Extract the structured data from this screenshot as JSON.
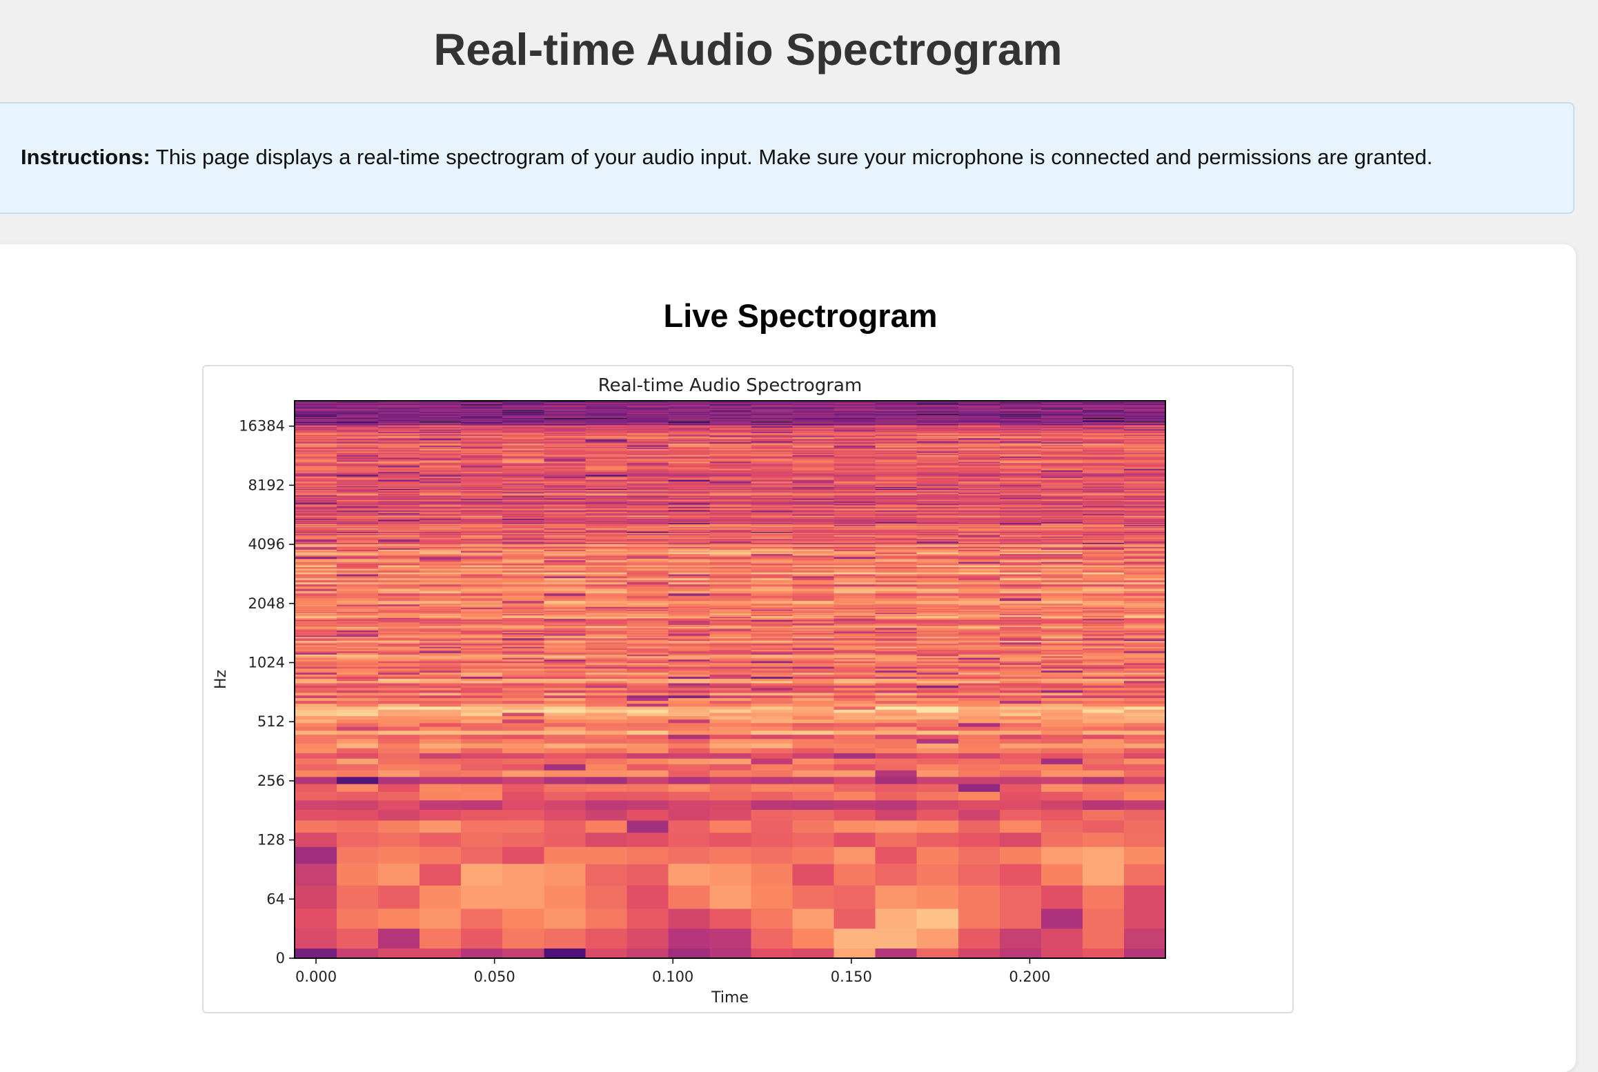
{
  "page": {
    "title": "Real-time Audio Spectrogram"
  },
  "instructions": {
    "label": "Instructions:",
    "text": " This page displays a real-time spectrogram of your audio input. Make sure your microphone is connected and permissions are granted."
  },
  "card": {
    "title": "Live Spectrogram"
  },
  "chart_data": {
    "type": "heatmap",
    "title": "Real-time Audio Spectrogram",
    "xlabel": "Time",
    "ylabel": "Hz",
    "xlim": [
      -0.006,
      0.238
    ],
    "x_ticks": [
      0.0,
      0.05,
      0.1,
      0.15,
      0.2
    ],
    "x_tick_labels": [
      "0.000",
      "0.050",
      "0.100",
      "0.150",
      "0.200"
    ],
    "y_scale": "symlog-base2",
    "y_ticks": [
      0,
      64,
      128,
      256,
      512,
      1024,
      2048,
      4096,
      8192,
      16384
    ],
    "y_tick_labels": [
      "0",
      "64",
      "128",
      "256",
      "512",
      "1024",
      "2048",
      "4096",
      "8192",
      "16384"
    ],
    "ylim": [
      0,
      22050
    ],
    "colormap": "magma",
    "frame_times": [
      0.0,
      0.0116,
      0.0232,
      0.0348,
      0.0464,
      0.058,
      0.0697,
      0.0813,
      0.0929,
      0.1045,
      0.1161,
      0.1277,
      0.1393,
      0.1509,
      0.1625,
      0.1741,
      0.1858,
      0.1974,
      0.209,
      0.2206,
      0.2322
    ],
    "freq_bins_hz": [
      0,
      21.5,
      43,
      64.5,
      86,
      107.7,
      129,
      150.7,
      172,
      193.8,
      215,
      237,
      258,
      280,
      301,
      323,
      344,
      366,
      388,
      409,
      430
    ],
    "intensity_low_bins": [
      [
        0.35,
        0.55,
        0.6,
        0.6,
        0.5,
        0.55,
        0.25,
        0.6,
        0.55,
        0.45,
        0.5,
        0.62,
        0.6,
        0.82,
        0.5,
        0.68,
        0.58,
        0.52,
        0.6,
        0.64,
        0.5
      ],
      [
        0.6,
        0.66,
        0.5,
        0.72,
        0.65,
        0.72,
        0.7,
        0.65,
        0.6,
        0.5,
        0.52,
        0.68,
        0.75,
        0.85,
        0.85,
        0.8,
        0.65,
        0.55,
        0.6,
        0.7,
        0.55
      ],
      [
        0.62,
        0.72,
        0.75,
        0.78,
        0.7,
        0.75,
        0.78,
        0.72,
        0.65,
        0.58,
        0.65,
        0.72,
        0.8,
        0.66,
        0.84,
        0.88,
        0.72,
        0.68,
        0.48,
        0.7,
        0.6
      ],
      [
        0.58,
        0.7,
        0.66,
        0.76,
        0.8,
        0.8,
        0.76,
        0.7,
        0.62,
        0.72,
        0.8,
        0.75,
        0.7,
        0.68,
        0.78,
        0.76,
        0.72,
        0.68,
        0.62,
        0.72,
        0.6
      ],
      [
        0.55,
        0.74,
        0.78,
        0.64,
        0.82,
        0.8,
        0.78,
        0.68,
        0.66,
        0.8,
        0.78,
        0.74,
        0.62,
        0.72,
        0.68,
        0.72,
        0.68,
        0.64,
        0.74,
        0.82,
        0.7
      ],
      [
        0.45,
        0.72,
        0.74,
        0.72,
        0.68,
        0.62,
        0.74,
        0.74,
        0.72,
        0.7,
        0.72,
        0.7,
        0.72,
        0.78,
        0.64,
        0.74,
        0.7,
        0.74,
        0.8,
        0.82,
        0.76
      ],
      [
        0.6,
        0.68,
        0.7,
        0.66,
        0.7,
        0.68,
        0.66,
        0.6,
        0.62,
        0.66,
        0.64,
        0.66,
        0.68,
        0.62,
        0.7,
        0.66,
        0.64,
        0.6,
        0.7,
        0.72,
        0.7
      ]
    ],
    "intensity_bands": {
      "128-256": 0.62,
      "256-512": 0.72,
      "512-600": 0.88,
      "600-2048": 0.72,
      "2048-4096": 0.74,
      "4096-16384": 0.64,
      "16384-22050": 0.4
    }
  }
}
